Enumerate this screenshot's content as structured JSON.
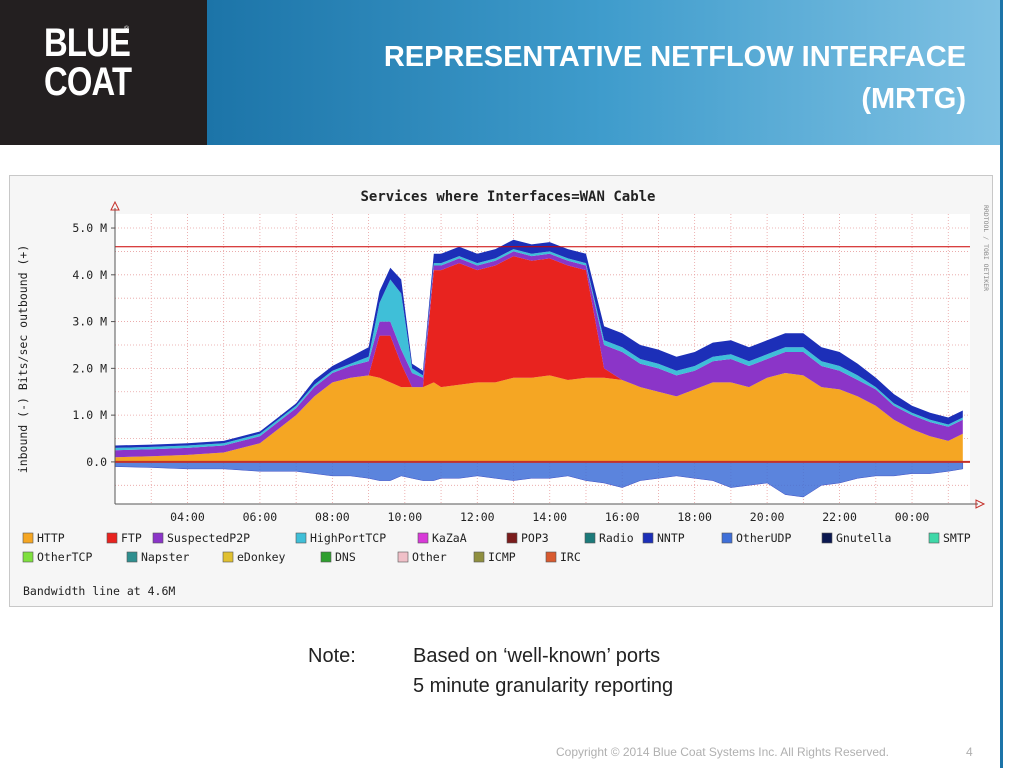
{
  "logo": {
    "line1": "BLUE",
    "line2": "COAT",
    "reg": "®"
  },
  "slide": {
    "title_line1": "REPRESENTATIVE NETFLOW INTERFACE",
    "title_line2": "(MRTG)"
  },
  "note": {
    "label": "Note:",
    "line1": "Based on ‘well-known’ ports",
    "line2": "5 minute granularity reporting"
  },
  "footer": {
    "copyright": "Copyright © 2014 Blue Coat Systems Inc.  All Rights Reserved.",
    "page": "4"
  },
  "chart_data": {
    "type": "area",
    "title": "Services where Interfaces=WAN Cable",
    "ylabel": "inbound (-)   Bits/sec   outbound (+)",
    "side_label": "RRDTOOL / TOBI OETIKER",
    "ytick_labels": [
      "5.0 M",
      "4.0 M",
      "3.0 M",
      "2.0 M",
      "1.0 M",
      "0.0"
    ],
    "ytick_values": [
      5.0,
      4.0,
      3.0,
      2.0,
      1.0,
      0.0
    ],
    "ylim": [
      -0.9,
      5.3
    ],
    "units": "Mbit/s",
    "xtick_labels": [
      "04:00",
      "06:00",
      "08:00",
      "10:00",
      "12:00",
      "14:00",
      "16:00",
      "18:00",
      "20:00",
      "22:00",
      "00:00"
    ],
    "xtick_hours": [
      4,
      6,
      8,
      10,
      12,
      14,
      16,
      18,
      20,
      22,
      24
    ],
    "xlim_hours": [
      2.0,
      25.6
    ],
    "grid": true,
    "bandwidth_line": 4.6,
    "bandwidth_label": "Bandwidth line at 4.6M",
    "x_hours": [
      2.0,
      3.0,
      4.0,
      5.0,
      6.0,
      6.5,
      7.0,
      7.5,
      8.0,
      8.5,
      9.0,
      9.3,
      9.6,
      9.9,
      10.2,
      10.5,
      10.8,
      11.0,
      11.5,
      12.0,
      12.5,
      13.0,
      13.5,
      14.0,
      14.5,
      15.0,
      15.5,
      16.0,
      16.5,
      17.0,
      17.5,
      18.0,
      18.5,
      19.0,
      19.5,
      20.0,
      20.5,
      21.0,
      21.5,
      22.0,
      22.5,
      23.0,
      23.5,
      24.0,
      24.5,
      25.0,
      25.4
    ],
    "series": [
      {
        "name": "HTTP",
        "color": "#f5a623",
        "values": [
          0.1,
          0.12,
          0.15,
          0.2,
          0.4,
          0.7,
          1.0,
          1.4,
          1.7,
          1.8,
          1.85,
          1.8,
          1.7,
          1.6,
          1.6,
          1.6,
          1.7,
          1.6,
          1.65,
          1.7,
          1.7,
          1.8,
          1.8,
          1.85,
          1.75,
          1.8,
          1.8,
          1.75,
          1.6,
          1.5,
          1.4,
          1.55,
          1.7,
          1.7,
          1.6,
          1.8,
          1.9,
          1.85,
          1.6,
          1.55,
          1.4,
          1.2,
          0.9,
          0.7,
          0.55,
          0.45,
          0.6
        ]
      },
      {
        "name": "FTP",
        "color": "#e8231f",
        "values": [
          0,
          0,
          0,
          0,
          0,
          0,
          0,
          0,
          0,
          0,
          0,
          0.9,
          1.0,
          0.5,
          0,
          0,
          2.4,
          2.5,
          2.6,
          2.4,
          2.5,
          2.6,
          2.5,
          2.5,
          2.45,
          2.3,
          0.2,
          0,
          0,
          0,
          0,
          0,
          0,
          0,
          0,
          0,
          0,
          0,
          0,
          0,
          0,
          0,
          0,
          0,
          0,
          0,
          0
        ]
      },
      {
        "name": "SuspectedP2P",
        "color": "#8b35c8",
        "values": [
          0.15,
          0.15,
          0.15,
          0.15,
          0.15,
          0.15,
          0.15,
          0.2,
          0.2,
          0.25,
          0.3,
          0.3,
          0.3,
          0.3,
          0.3,
          0.2,
          0.1,
          0.1,
          0.1,
          0.1,
          0.1,
          0.1,
          0.1,
          0.1,
          0.1,
          0.1,
          0.5,
          0.6,
          0.5,
          0.5,
          0.45,
          0.4,
          0.45,
          0.5,
          0.45,
          0.4,
          0.45,
          0.5,
          0.45,
          0.4,
          0.35,
          0.35,
          0.3,
          0.3,
          0.3,
          0.3,
          0.3
        ]
      },
      {
        "name": "HighPortTCP",
        "color": "#3fbfd8",
        "values": [
          0.05,
          0.05,
          0.05,
          0.05,
          0.05,
          0.05,
          0.05,
          0.05,
          0.05,
          0.05,
          0.1,
          0.4,
          0.9,
          1.2,
          0.1,
          0.05,
          0.05,
          0.05,
          0.05,
          0.05,
          0.05,
          0.05,
          0.05,
          0.05,
          0.05,
          0.05,
          0.1,
          0.1,
          0.1,
          0.1,
          0.1,
          0.1,
          0.1,
          0.1,
          0.1,
          0.1,
          0.1,
          0.1,
          0.1,
          0.1,
          0.1,
          0.05,
          0.05,
          0.05,
          0.05,
          0.05,
          0.05
        ]
      },
      {
        "name": "NNTP",
        "color": "#1c2fb8",
        "values": [
          0.05,
          0.05,
          0.05,
          0.05,
          0.05,
          0.05,
          0.05,
          0.1,
          0.1,
          0.15,
          0.2,
          0.25,
          0.25,
          0.3,
          0.1,
          0.1,
          0.2,
          0.2,
          0.2,
          0.2,
          0.2,
          0.2,
          0.2,
          0.2,
          0.2,
          0.2,
          0.3,
          0.3,
          0.3,
          0.3,
          0.3,
          0.3,
          0.3,
          0.3,
          0.3,
          0.3,
          0.3,
          0.3,
          0.3,
          0.3,
          0.25,
          0.2,
          0.2,
          0.15,
          0.15,
          0.15,
          0.15
        ]
      }
    ],
    "inbound_values": [
      -0.1,
      -0.12,
      -0.15,
      -0.15,
      -0.2,
      -0.2,
      -0.2,
      -0.25,
      -0.3,
      -0.3,
      -0.35,
      -0.4,
      -0.4,
      -0.3,
      -0.35,
      -0.4,
      -0.4,
      -0.35,
      -0.35,
      -0.3,
      -0.35,
      -0.4,
      -0.35,
      -0.35,
      -0.3,
      -0.4,
      -0.45,
      -0.55,
      -0.4,
      -0.35,
      -0.3,
      -0.35,
      -0.4,
      -0.55,
      -0.5,
      -0.45,
      -0.7,
      -0.75,
      -0.5,
      -0.45,
      -0.35,
      -0.3,
      -0.3,
      -0.25,
      -0.25,
      -0.2,
      -0.15
    ],
    "legend": [
      {
        "label": "HTTP",
        "color": "#f5a623"
      },
      {
        "label": "FTP",
        "color": "#e8231f"
      },
      {
        "label": "SuspectedP2P",
        "color": "#8b35c8"
      },
      {
        "label": "HighPortTCP",
        "color": "#3fbfd8"
      },
      {
        "label": "KaZaA",
        "color": "#d83ad8"
      },
      {
        "label": "POP3",
        "color": "#7a1c1c"
      },
      {
        "label": "Radio",
        "color": "#1c7a7a"
      },
      {
        "label": "NNTP",
        "color": "#1c2fb8"
      },
      {
        "label": "OtherUDP",
        "color": "#3f6fd8"
      },
      {
        "label": "Gnutella",
        "color": "#0b1850"
      },
      {
        "label": "SMTP",
        "color": "#3fd8a8"
      },
      {
        "label": "OtherTCP",
        "color": "#7fe03f"
      },
      {
        "label": "Napster",
        "color": "#2f8f8f"
      },
      {
        "label": "eDonkey",
        "color": "#e0c030"
      },
      {
        "label": "DNS",
        "color": "#2f9f2f"
      },
      {
        "label": "Other",
        "color": "#f0c0c8"
      },
      {
        "label": "ICMP",
        "color": "#8f8f3f"
      },
      {
        "label": "IRC",
        "color": "#d85a2f"
      }
    ],
    "colors": {
      "grid": "#e8a0a0",
      "axis": "#555555",
      "bandwidth": "#cc0000",
      "plot_bg": "#ffffff",
      "frame_bg": "#f6f6f6"
    }
  }
}
